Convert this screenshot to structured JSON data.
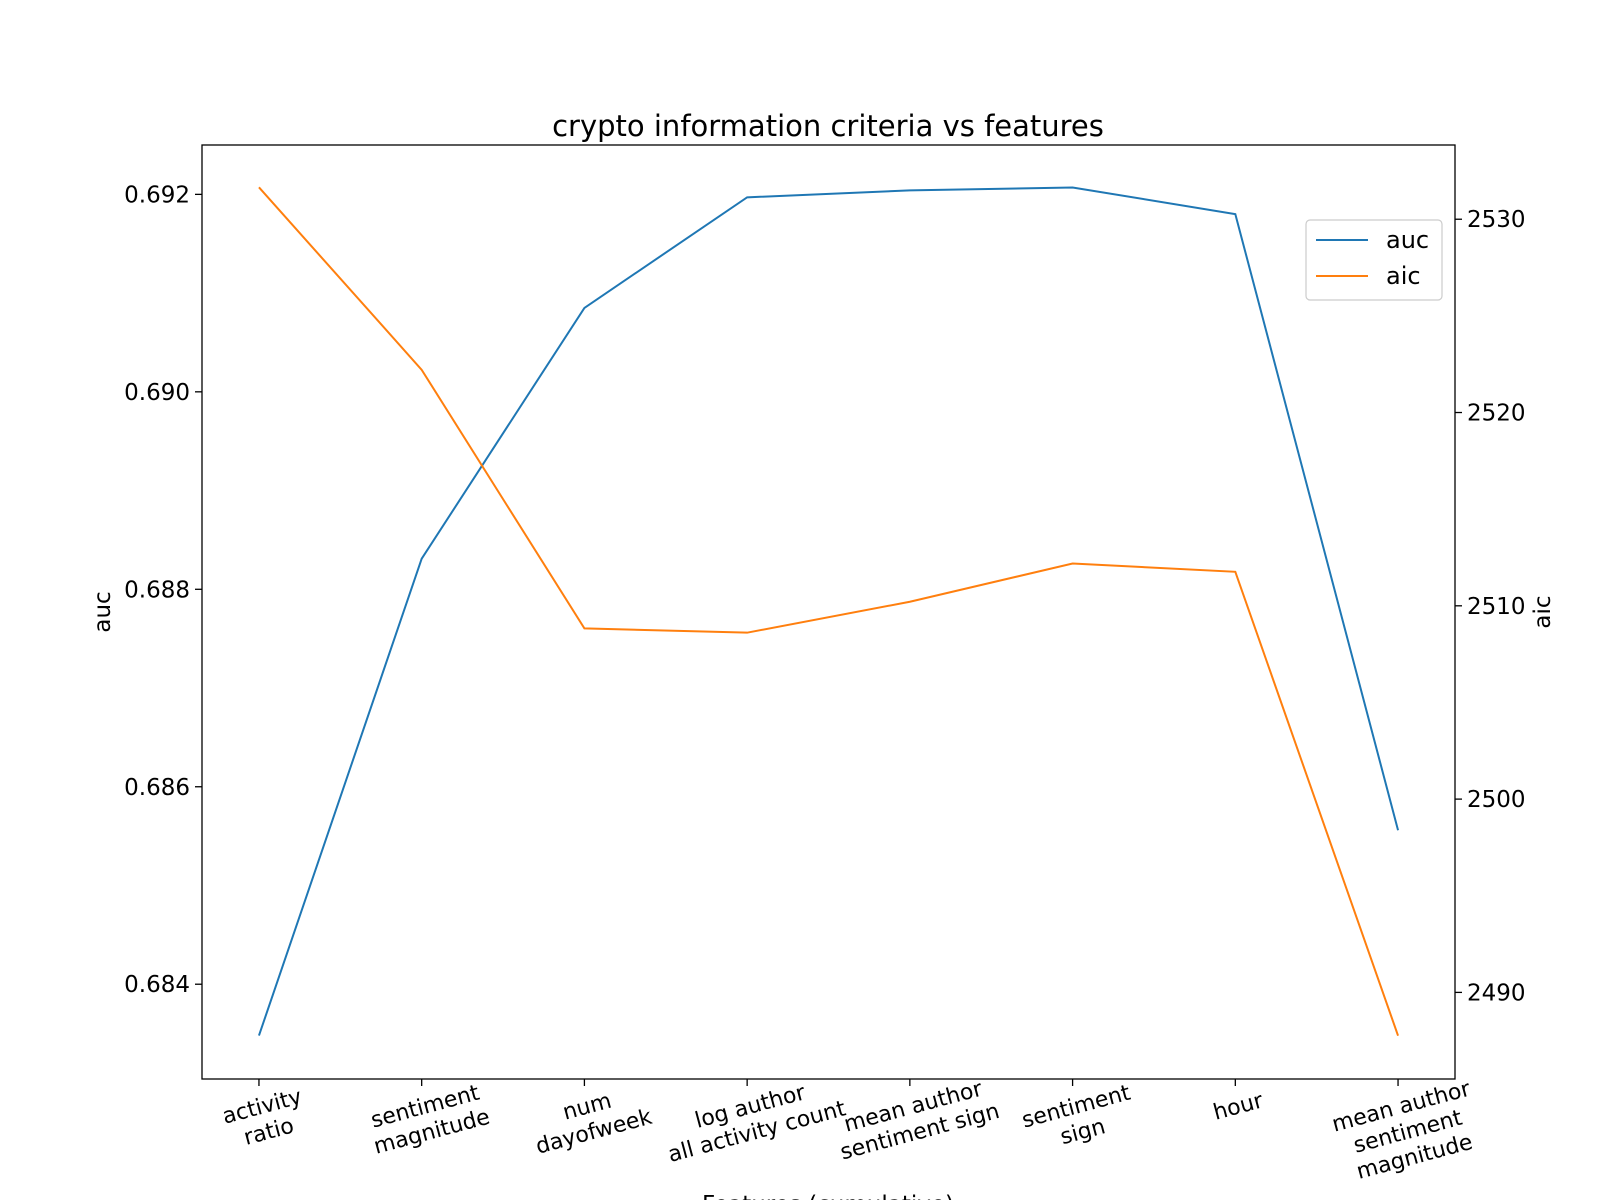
{
  "chart_data": {
    "type": "line",
    "title": "crypto information criteria vs features",
    "x_label": "Features (cumulative)",
    "y_label": "auc",
    "y2_label": "aic",
    "categories": [
      "activity\nratio",
      "sentiment\nmagnitude",
      "num\ndayofweek",
      "log author\nall activity count",
      "mean author\nsentiment sign",
      "sentiment\nsign",
      "hour",
      "mean author\nsentiment magnitude"
    ],
    "series": [
      {
        "name": "auc",
        "color": "#1f77b4",
        "axis": "y",
        "values": [
          0.68348,
          0.68831,
          0.69085,
          0.69197,
          0.69204,
          0.69207,
          0.6918,
          0.68556
        ]
      },
      {
        "name": "aic",
        "color": "#ff7f0e",
        "axis": "y2",
        "values": [
          2531.65,
          2522.21,
          2508.83,
          2508.61,
          2510.21,
          2512.19,
          2511.76,
          2487.76
        ]
      }
    ],
    "ylim": [
      0.68304,
      0.6925
    ],
    "yticks": [
      {
        "value": 0.684,
        "label": "0.684"
      },
      {
        "value": 0.686,
        "label": "0.686"
      },
      {
        "value": 0.688,
        "label": "0.688"
      },
      {
        "value": 0.69,
        "label": "0.690"
      },
      {
        "value": 0.692,
        "label": "0.692"
      }
    ],
    "y2lim": [
      2485.52,
      2533.84
    ],
    "y2ticks": [
      2490,
      2500,
      2510,
      2520,
      2530
    ],
    "legend": "upper right",
    "grid": false
  }
}
